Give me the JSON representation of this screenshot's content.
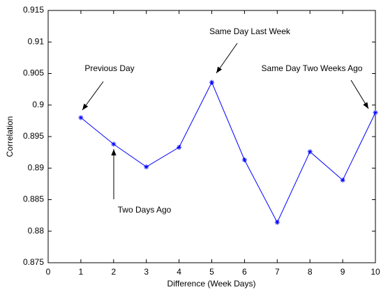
{
  "chart_data": {
    "type": "line",
    "xlabel": "Difference (Week Days)",
    "ylabel": "Correlation",
    "x": [
      1,
      2,
      3,
      4,
      5,
      6,
      7,
      8,
      9,
      10
    ],
    "series": [
      {
        "color": "#0000ff",
        "values": [
          0.898,
          0.8938,
          0.8902,
          0.8933,
          0.9036,
          0.8913,
          0.8814,
          0.8926,
          0.8881,
          0.8988
        ]
      }
    ],
    "xlim": [
      0,
      10
    ],
    "xticks": [
      0,
      1,
      2,
      3,
      4,
      5,
      6,
      7,
      8,
      9,
      10
    ],
    "ylim": [
      0.875,
      0.915
    ],
    "yticks": [
      0.875,
      0.88,
      0.885,
      0.89,
      0.895,
      0.9,
      0.905,
      0.91,
      0.915
    ],
    "annotations": [
      "Previous Day",
      "Two Days Ago",
      "Same Day Last Week",
      "Same Day Two Weeks Ago"
    ]
  }
}
